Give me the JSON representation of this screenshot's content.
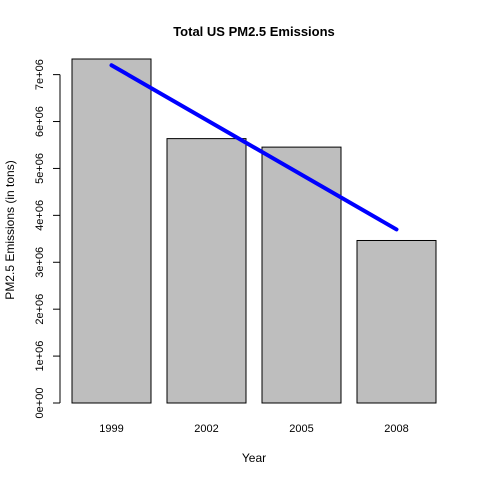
{
  "chart_data": {
    "type": "bar",
    "title": "Total US PM2.5 Emissions",
    "xlabel": "Year",
    "ylabel": "PM2.5 Emissions (in tons)",
    "categories": [
      "1999",
      "2002",
      "2005",
      "2008"
    ],
    "values": [
      7332967,
      5635780,
      5454703,
      3464206
    ],
    "ylim": [
      0,
      7332967
    ],
    "yticks": [
      0,
      1000000,
      2000000,
      3000000,
      4000000,
      5000000,
      6000000,
      7000000
    ],
    "ytick_labels": [
      "0e+00",
      "1e+06",
      "2e+06",
      "3e+06",
      "4e+06",
      "5e+06",
      "6e+06",
      "7e+06"
    ],
    "bar_color": "#bebebe",
    "trend_line": {
      "color": "#0000ff",
      "start": {
        "category": "1999",
        "value": 7200000
      },
      "end": {
        "category": "2008",
        "value": 3700000
      }
    },
    "grid": false,
    "legend": "none"
  }
}
